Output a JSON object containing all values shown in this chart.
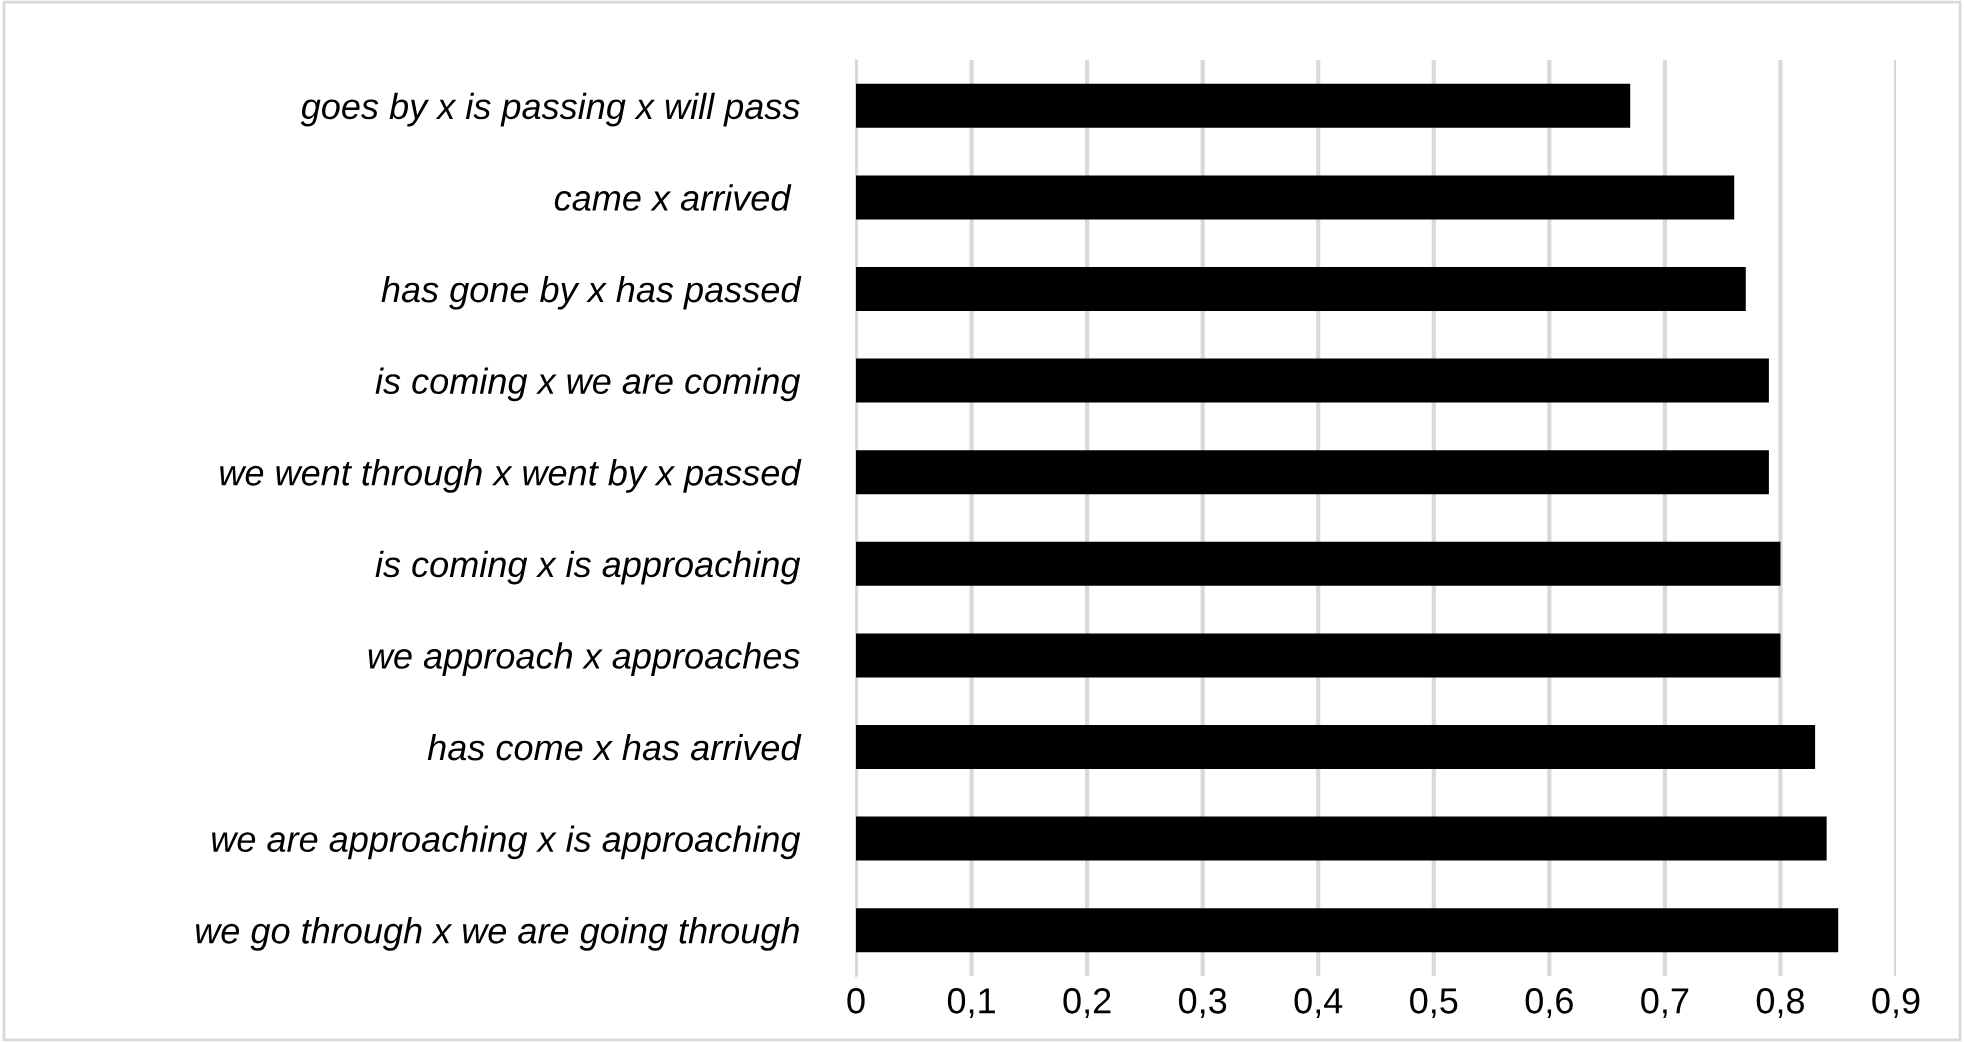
{
  "chart_data": {
    "type": "bar",
    "orientation": "horizontal",
    "categories": [
      "goes by x is passing x will pass",
      "came x arrived ",
      "has gone by x has passed",
      "is coming x we are coming",
      "we went through x went by x passed",
      "is coming x is approaching",
      "we approach x approaches",
      "has come x has arrived",
      "we are approaching x is approaching",
      "we go through x we are going through"
    ],
    "values": [
      0.67,
      0.76,
      0.77,
      0.79,
      0.79,
      0.8,
      0.8,
      0.83,
      0.84,
      0.85
    ],
    "color": "#000000",
    "xlim": [
      0,
      0.9
    ],
    "xticks": [
      {
        "value": 0,
        "label": "0"
      },
      {
        "value": 0.1,
        "label": "0,1"
      },
      {
        "value": 0.2,
        "label": "0,2"
      },
      {
        "value": 0.3,
        "label": "0,3"
      },
      {
        "value": 0.4,
        "label": "0,4"
      },
      {
        "value": 0.5,
        "label": "0,5"
      },
      {
        "value": 0.6,
        "label": "0,6"
      },
      {
        "value": 0.7,
        "label": "0,7"
      },
      {
        "value": 0.8,
        "label": "0,8"
      },
      {
        "value": 0.9,
        "label": "0,9"
      }
    ],
    "grid": "x"
  }
}
